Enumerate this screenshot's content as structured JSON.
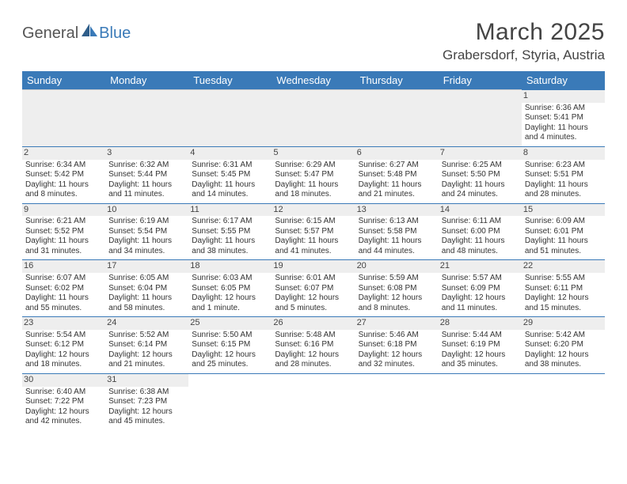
{
  "brand": {
    "part1": "General",
    "part2": "Blue"
  },
  "title": "March 2025",
  "location": "Grabersdorf, Styria, Austria",
  "colors": {
    "header_bg": "#3a7ab8",
    "header_text": "#ffffff",
    "rule": "#3a7ab8",
    "muted_bg": "#eeeeee",
    "text": "#333333"
  },
  "day_headers": [
    "Sunday",
    "Monday",
    "Tuesday",
    "Wednesday",
    "Thursday",
    "Friday",
    "Saturday"
  ],
  "weeks": [
    [
      null,
      null,
      null,
      null,
      null,
      null,
      {
        "n": "1",
        "sr": "Sunrise: 6:36 AM",
        "ss": "Sunset: 5:41 PM",
        "dl1": "Daylight: 11 hours",
        "dl2": "and 4 minutes."
      }
    ],
    [
      {
        "n": "2",
        "sr": "Sunrise: 6:34 AM",
        "ss": "Sunset: 5:42 PM",
        "dl1": "Daylight: 11 hours",
        "dl2": "and 8 minutes."
      },
      {
        "n": "3",
        "sr": "Sunrise: 6:32 AM",
        "ss": "Sunset: 5:44 PM",
        "dl1": "Daylight: 11 hours",
        "dl2": "and 11 minutes."
      },
      {
        "n": "4",
        "sr": "Sunrise: 6:31 AM",
        "ss": "Sunset: 5:45 PM",
        "dl1": "Daylight: 11 hours",
        "dl2": "and 14 minutes."
      },
      {
        "n": "5",
        "sr": "Sunrise: 6:29 AM",
        "ss": "Sunset: 5:47 PM",
        "dl1": "Daylight: 11 hours",
        "dl2": "and 18 minutes."
      },
      {
        "n": "6",
        "sr": "Sunrise: 6:27 AM",
        "ss": "Sunset: 5:48 PM",
        "dl1": "Daylight: 11 hours",
        "dl2": "and 21 minutes."
      },
      {
        "n": "7",
        "sr": "Sunrise: 6:25 AM",
        "ss": "Sunset: 5:50 PM",
        "dl1": "Daylight: 11 hours",
        "dl2": "and 24 minutes."
      },
      {
        "n": "8",
        "sr": "Sunrise: 6:23 AM",
        "ss": "Sunset: 5:51 PM",
        "dl1": "Daylight: 11 hours",
        "dl2": "and 28 minutes."
      }
    ],
    [
      {
        "n": "9",
        "sr": "Sunrise: 6:21 AM",
        "ss": "Sunset: 5:52 PM",
        "dl1": "Daylight: 11 hours",
        "dl2": "and 31 minutes."
      },
      {
        "n": "10",
        "sr": "Sunrise: 6:19 AM",
        "ss": "Sunset: 5:54 PM",
        "dl1": "Daylight: 11 hours",
        "dl2": "and 34 minutes."
      },
      {
        "n": "11",
        "sr": "Sunrise: 6:17 AM",
        "ss": "Sunset: 5:55 PM",
        "dl1": "Daylight: 11 hours",
        "dl2": "and 38 minutes."
      },
      {
        "n": "12",
        "sr": "Sunrise: 6:15 AM",
        "ss": "Sunset: 5:57 PM",
        "dl1": "Daylight: 11 hours",
        "dl2": "and 41 minutes."
      },
      {
        "n": "13",
        "sr": "Sunrise: 6:13 AM",
        "ss": "Sunset: 5:58 PM",
        "dl1": "Daylight: 11 hours",
        "dl2": "and 44 minutes."
      },
      {
        "n": "14",
        "sr": "Sunrise: 6:11 AM",
        "ss": "Sunset: 6:00 PM",
        "dl1": "Daylight: 11 hours",
        "dl2": "and 48 minutes."
      },
      {
        "n": "15",
        "sr": "Sunrise: 6:09 AM",
        "ss": "Sunset: 6:01 PM",
        "dl1": "Daylight: 11 hours",
        "dl2": "and 51 minutes."
      }
    ],
    [
      {
        "n": "16",
        "sr": "Sunrise: 6:07 AM",
        "ss": "Sunset: 6:02 PM",
        "dl1": "Daylight: 11 hours",
        "dl2": "and 55 minutes."
      },
      {
        "n": "17",
        "sr": "Sunrise: 6:05 AM",
        "ss": "Sunset: 6:04 PM",
        "dl1": "Daylight: 11 hours",
        "dl2": "and 58 minutes."
      },
      {
        "n": "18",
        "sr": "Sunrise: 6:03 AM",
        "ss": "Sunset: 6:05 PM",
        "dl1": "Daylight: 12 hours",
        "dl2": "and 1 minute."
      },
      {
        "n": "19",
        "sr": "Sunrise: 6:01 AM",
        "ss": "Sunset: 6:07 PM",
        "dl1": "Daylight: 12 hours",
        "dl2": "and 5 minutes."
      },
      {
        "n": "20",
        "sr": "Sunrise: 5:59 AM",
        "ss": "Sunset: 6:08 PM",
        "dl1": "Daylight: 12 hours",
        "dl2": "and 8 minutes."
      },
      {
        "n": "21",
        "sr": "Sunrise: 5:57 AM",
        "ss": "Sunset: 6:09 PM",
        "dl1": "Daylight: 12 hours",
        "dl2": "and 11 minutes."
      },
      {
        "n": "22",
        "sr": "Sunrise: 5:55 AM",
        "ss": "Sunset: 6:11 PM",
        "dl1": "Daylight: 12 hours",
        "dl2": "and 15 minutes."
      }
    ],
    [
      {
        "n": "23",
        "sr": "Sunrise: 5:54 AM",
        "ss": "Sunset: 6:12 PM",
        "dl1": "Daylight: 12 hours",
        "dl2": "and 18 minutes."
      },
      {
        "n": "24",
        "sr": "Sunrise: 5:52 AM",
        "ss": "Sunset: 6:14 PM",
        "dl1": "Daylight: 12 hours",
        "dl2": "and 21 minutes."
      },
      {
        "n": "25",
        "sr": "Sunrise: 5:50 AM",
        "ss": "Sunset: 6:15 PM",
        "dl1": "Daylight: 12 hours",
        "dl2": "and 25 minutes."
      },
      {
        "n": "26",
        "sr": "Sunrise: 5:48 AM",
        "ss": "Sunset: 6:16 PM",
        "dl1": "Daylight: 12 hours",
        "dl2": "and 28 minutes."
      },
      {
        "n": "27",
        "sr": "Sunrise: 5:46 AM",
        "ss": "Sunset: 6:18 PM",
        "dl1": "Daylight: 12 hours",
        "dl2": "and 32 minutes."
      },
      {
        "n": "28",
        "sr": "Sunrise: 5:44 AM",
        "ss": "Sunset: 6:19 PM",
        "dl1": "Daylight: 12 hours",
        "dl2": "and 35 minutes."
      },
      {
        "n": "29",
        "sr": "Sunrise: 5:42 AM",
        "ss": "Sunset: 6:20 PM",
        "dl1": "Daylight: 12 hours",
        "dl2": "and 38 minutes."
      }
    ],
    [
      {
        "n": "30",
        "sr": "Sunrise: 6:40 AM",
        "ss": "Sunset: 7:22 PM",
        "dl1": "Daylight: 12 hours",
        "dl2": "and 42 minutes."
      },
      {
        "n": "31",
        "sr": "Sunrise: 6:38 AM",
        "ss": "Sunset: 7:23 PM",
        "dl1": "Daylight: 12 hours",
        "dl2": "and 45 minutes."
      },
      null,
      null,
      null,
      null,
      null
    ]
  ]
}
